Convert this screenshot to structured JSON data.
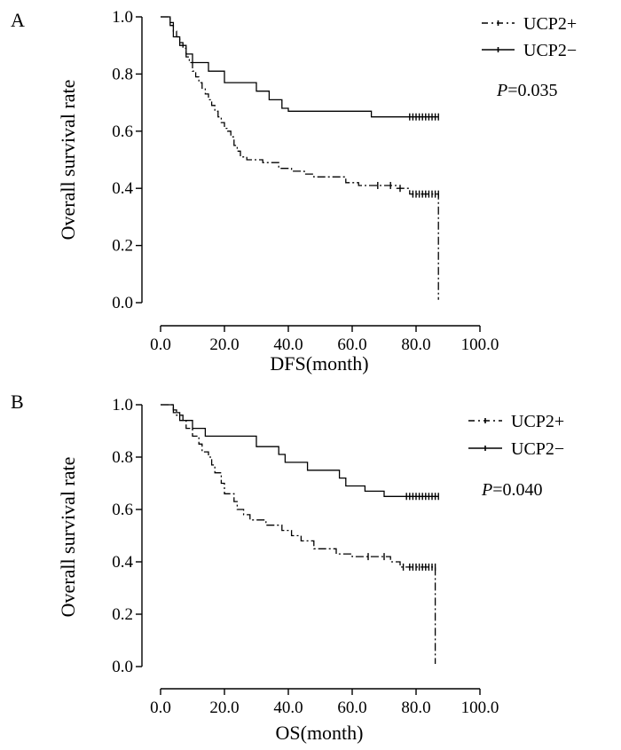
{
  "chart_data": [
    {
      "type": "line",
      "panel_label": "A",
      "title": "",
      "xlabel": "DFS(month)",
      "ylabel": "Overall survival rate",
      "xlim": [
        0,
        100
      ],
      "ylim": [
        0,
        1
      ],
      "x_ticks": [
        "0.0",
        "20.0",
        "40.0",
        "60.0",
        "80.0",
        "100.0"
      ],
      "y_ticks": [
        "0.0",
        "0.2",
        "0.4",
        "0.6",
        "0.8",
        "1.0"
      ],
      "annotation": {
        "label": "P",
        "value": "=0.035"
      },
      "legend_position": "top-right",
      "series": [
        {
          "name": "UCP2+",
          "style": "dash-dot",
          "points": [
            [
              0,
              1.0
            ],
            [
              3,
              1.0
            ],
            [
              3,
              0.98
            ],
            [
              4,
              0.98
            ],
            [
              4,
              0.95
            ],
            [
              5,
              0.95
            ],
            [
              5,
              0.93
            ],
            [
              6,
              0.93
            ],
            [
              6,
              0.91
            ],
            [
              7,
              0.91
            ],
            [
              7,
              0.89
            ],
            [
              8,
              0.89
            ],
            [
              8,
              0.86
            ],
            [
              9,
              0.86
            ],
            [
              9,
              0.84
            ],
            [
              10,
              0.84
            ],
            [
              10,
              0.81
            ],
            [
              11,
              0.81
            ],
            [
              11,
              0.79
            ],
            [
              12,
              0.79
            ],
            [
              12,
              0.77
            ],
            [
              13,
              0.77
            ],
            [
              13,
              0.75
            ],
            [
              14,
              0.75
            ],
            [
              14,
              0.73
            ],
            [
              15,
              0.73
            ],
            [
              15,
              0.71
            ],
            [
              16,
              0.71
            ],
            [
              16,
              0.69
            ],
            [
              17,
              0.69
            ],
            [
              17,
              0.67
            ],
            [
              18,
              0.67
            ],
            [
              18,
              0.65
            ],
            [
              19,
              0.65
            ],
            [
              19,
              0.63
            ],
            [
              20,
              0.63
            ],
            [
              20,
              0.61
            ],
            [
              21,
              0.61
            ],
            [
              21,
              0.6
            ],
            [
              22,
              0.6
            ],
            [
              22,
              0.58
            ],
            [
              23,
              0.58
            ],
            [
              23,
              0.55
            ],
            [
              24,
              0.55
            ],
            [
              24,
              0.53
            ],
            [
              25,
              0.53
            ],
            [
              25,
              0.51
            ],
            [
              27,
              0.51
            ],
            [
              27,
              0.5
            ],
            [
              32,
              0.5
            ],
            [
              32,
              0.49
            ],
            [
              37,
              0.49
            ],
            [
              37,
              0.47
            ],
            [
              41,
              0.47
            ],
            [
              41,
              0.46
            ],
            [
              45,
              0.46
            ],
            [
              45,
              0.45
            ],
            [
              48,
              0.45
            ],
            [
              48,
              0.44
            ],
            [
              58,
              0.44
            ],
            [
              58,
              0.42
            ],
            [
              62,
              0.42
            ],
            [
              62,
              0.41
            ],
            [
              74,
              0.41
            ],
            [
              74,
              0.4
            ],
            [
              78,
              0.4
            ],
            [
              78,
              0.38
            ],
            [
              87,
              0.38
            ],
            [
              87,
              0.01
            ]
          ],
          "censor_x": [
            68,
            72,
            75,
            79,
            80,
            81,
            82,
            83,
            84,
            85,
            86,
            87
          ]
        },
        {
          "name": "UCP2−",
          "style": "solid",
          "points": [
            [
              0,
              1.0
            ],
            [
              3,
              1.0
            ],
            [
              3,
              0.97
            ],
            [
              4,
              0.97
            ],
            [
              4,
              0.93
            ],
            [
              6,
              0.93
            ],
            [
              6,
              0.9
            ],
            [
              8,
              0.9
            ],
            [
              8,
              0.87
            ],
            [
              10,
              0.87
            ],
            [
              10,
              0.84
            ],
            [
              15,
              0.84
            ],
            [
              15,
              0.81
            ],
            [
              20,
              0.81
            ],
            [
              20,
              0.77
            ],
            [
              30,
              0.77
            ],
            [
              30,
              0.74
            ],
            [
              34,
              0.74
            ],
            [
              34,
              0.71
            ],
            [
              38,
              0.71
            ],
            [
              38,
              0.68
            ],
            [
              40,
              0.68
            ],
            [
              40,
              0.67
            ],
            [
              66,
              0.67
            ],
            [
              66,
              0.65
            ],
            [
              87,
              0.65
            ]
          ],
          "censor_x": [
            78,
            79,
            80,
            81,
            82,
            83,
            84,
            85,
            86,
            87
          ]
        }
      ]
    },
    {
      "type": "line",
      "panel_label": "B",
      "title": "",
      "xlabel": "OS(month)",
      "ylabel": "Overall survival rate",
      "xlim": [
        0,
        100
      ],
      "ylim": [
        0,
        1
      ],
      "x_ticks": [
        "0.0",
        "20.0",
        "40.0",
        "60.0",
        "80.0",
        "100.0"
      ],
      "y_ticks": [
        "0.0",
        "0.2",
        "0.4",
        "0.6",
        "0.8",
        "1.0"
      ],
      "annotation": {
        "label": "P",
        "value": "=0.040"
      },
      "legend_position": "top-right",
      "series": [
        {
          "name": "UCP2+",
          "style": "dash-dot",
          "points": [
            [
              0,
              1.0
            ],
            [
              4,
              1.0
            ],
            [
              4,
              0.98
            ],
            [
              5,
              0.98
            ],
            [
              5,
              0.96
            ],
            [
              7,
              0.96
            ],
            [
              7,
              0.94
            ],
            [
              8,
              0.94
            ],
            [
              8,
              0.91
            ],
            [
              10,
              0.91
            ],
            [
              10,
              0.88
            ],
            [
              12,
              0.88
            ],
            [
              12,
              0.85
            ],
            [
              13,
              0.85
            ],
            [
              13,
              0.82
            ],
            [
              15,
              0.82
            ],
            [
              15,
              0.8
            ],
            [
              16,
              0.8
            ],
            [
              16,
              0.77
            ],
            [
              17,
              0.77
            ],
            [
              17,
              0.74
            ],
            [
              19,
              0.74
            ],
            [
              19,
              0.7
            ],
            [
              20,
              0.7
            ],
            [
              20,
              0.66
            ],
            [
              23,
              0.66
            ],
            [
              23,
              0.63
            ],
            [
              24,
              0.63
            ],
            [
              24,
              0.6
            ],
            [
              26,
              0.6
            ],
            [
              26,
              0.58
            ],
            [
              28,
              0.58
            ],
            [
              28,
              0.56
            ],
            [
              33,
              0.56
            ],
            [
              33,
              0.54
            ],
            [
              38,
              0.54
            ],
            [
              38,
              0.52
            ],
            [
              41,
              0.52
            ],
            [
              41,
              0.5
            ],
            [
              44,
              0.5
            ],
            [
              44,
              0.48
            ],
            [
              48,
              0.48
            ],
            [
              48,
              0.45
            ],
            [
              55,
              0.45
            ],
            [
              55,
              0.43
            ],
            [
              60,
              0.43
            ],
            [
              60,
              0.42
            ],
            [
              72,
              0.42
            ],
            [
              72,
              0.4
            ],
            [
              75,
              0.4
            ],
            [
              75,
              0.38
            ],
            [
              86,
              0.38
            ],
            [
              86,
              0.01
            ]
          ],
          "censor_x": [
            65,
            70,
            76,
            78,
            79,
            80,
            81,
            82,
            83,
            84,
            85,
            86
          ]
        },
        {
          "name": "UCP2−",
          "style": "solid",
          "points": [
            [
              0,
              1.0
            ],
            [
              4,
              1.0
            ],
            [
              4,
              0.97
            ],
            [
              6,
              0.97
            ],
            [
              6,
              0.94
            ],
            [
              10,
              0.94
            ],
            [
              10,
              0.91
            ],
            [
              14,
              0.91
            ],
            [
              14,
              0.88
            ],
            [
              30,
              0.88
            ],
            [
              30,
              0.84
            ],
            [
              37,
              0.84
            ],
            [
              37,
              0.81
            ],
            [
              39,
              0.81
            ],
            [
              39,
              0.78
            ],
            [
              46,
              0.78
            ],
            [
              46,
              0.75
            ],
            [
              56,
              0.75
            ],
            [
              56,
              0.72
            ],
            [
              58,
              0.72
            ],
            [
              58,
              0.69
            ],
            [
              64,
              0.69
            ],
            [
              64,
              0.67
            ],
            [
              70,
              0.67
            ],
            [
              70,
              0.65
            ],
            [
              87,
              0.65
            ]
          ],
          "censor_x": [
            77,
            78,
            79,
            80,
            81,
            82,
            83,
            84,
            85,
            86,
            87
          ]
        }
      ]
    }
  ]
}
